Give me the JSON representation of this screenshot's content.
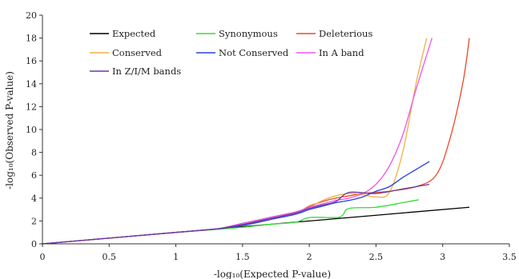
{
  "chart_data": {
    "type": "line",
    "xlabel": "-log₁₀(Expected P-value)",
    "ylabel": "-log₁₀(Observed P-value)",
    "xlim": [
      0,
      3.5
    ],
    "ylim": [
      0,
      20
    ],
    "xticks": [
      "0",
      "0.5",
      "1",
      "1.5",
      "2",
      "2.5",
      "3",
      "3.5"
    ],
    "yticks": [
      "0",
      "2",
      "4",
      "6",
      "8",
      "10",
      "12",
      "14",
      "16",
      "18",
      "20"
    ],
    "grid": false,
    "legend_position": "top-left",
    "series": [
      {
        "name": "Expected",
        "color": "#000000",
        "x": [
          0,
          3.2
        ],
        "y": [
          0,
          3.2
        ]
      },
      {
        "name": "Synonymous",
        "color": "#33dd33",
        "x": [
          0,
          0.5,
          1.0,
          1.3,
          1.5,
          1.7,
          1.9,
          2.0,
          2.2,
          2.25,
          2.3,
          2.5,
          2.7,
          2.82
        ],
        "y": [
          0,
          0.5,
          1.0,
          1.25,
          1.45,
          1.7,
          1.9,
          2.3,
          2.3,
          2.5,
          3.1,
          3.2,
          3.6,
          3.85
        ]
      },
      {
        "name": "Deleterious",
        "color": "#e84a2a",
        "x": [
          0,
          0.5,
          1.0,
          1.3,
          1.5,
          1.7,
          1.9,
          2.0,
          2.1,
          2.2,
          2.3,
          2.4,
          2.5,
          2.6,
          2.8,
          2.95,
          3.05,
          3.15,
          3.2
        ],
        "y": [
          0,
          0.5,
          1.0,
          1.3,
          1.6,
          2.2,
          2.7,
          3.3,
          3.7,
          4.0,
          4.2,
          4.4,
          4.5,
          4.6,
          5.0,
          6.0,
          9.0,
          14.0,
          18.0
        ]
      },
      {
        "name": "Conserved",
        "color": "#f0b040",
        "x": [
          0,
          0.5,
          1.0,
          1.3,
          1.5,
          1.7,
          1.9,
          2.0,
          2.1,
          2.2,
          2.3,
          2.4,
          2.5,
          2.6,
          2.7,
          2.8,
          2.88
        ],
        "y": [
          0,
          0.5,
          1.0,
          1.3,
          1.7,
          2.3,
          2.8,
          3.2,
          3.8,
          4.2,
          4.4,
          4.3,
          4.1,
          4.5,
          8.0,
          14.0,
          18.0
        ]
      },
      {
        "name": "Not Conserved",
        "color": "#2a3fe0",
        "x": [
          0,
          0.5,
          1.0,
          1.3,
          1.5,
          1.7,
          1.9,
          2.0,
          2.1,
          2.2,
          2.3,
          2.4,
          2.5,
          2.6,
          2.7,
          2.8,
          2.9
        ],
        "y": [
          0,
          0.5,
          1.0,
          1.3,
          1.6,
          2.1,
          2.6,
          3.0,
          3.3,
          3.6,
          3.8,
          4.1,
          4.6,
          5.0,
          5.8,
          6.5,
          7.2
        ]
      },
      {
        "name": "In A band",
        "color": "#ee55ee",
        "x": [
          0,
          0.5,
          1.0,
          1.3,
          1.5,
          1.7,
          1.9,
          2.0,
          2.1,
          2.2,
          2.3,
          2.4,
          2.5,
          2.6,
          2.7,
          2.8,
          2.92
        ],
        "y": [
          0,
          0.5,
          1.0,
          1.3,
          1.8,
          2.3,
          2.8,
          3.2,
          3.5,
          3.8,
          4.0,
          4.4,
          5.2,
          6.8,
          9.5,
          13.5,
          18.0
        ]
      },
      {
        "name": "In Z/I/M bands",
        "color": "#6a3aa0",
        "x": [
          0,
          0.5,
          1.0,
          1.3,
          1.5,
          1.7,
          1.9,
          2.0,
          2.1,
          2.2,
          2.3,
          2.5,
          2.7,
          2.9
        ],
        "y": [
          0,
          0.5,
          1.0,
          1.3,
          1.7,
          2.2,
          2.7,
          3.1,
          3.4,
          3.7,
          4.5,
          4.4,
          4.8,
          5.2
        ]
      }
    ]
  }
}
